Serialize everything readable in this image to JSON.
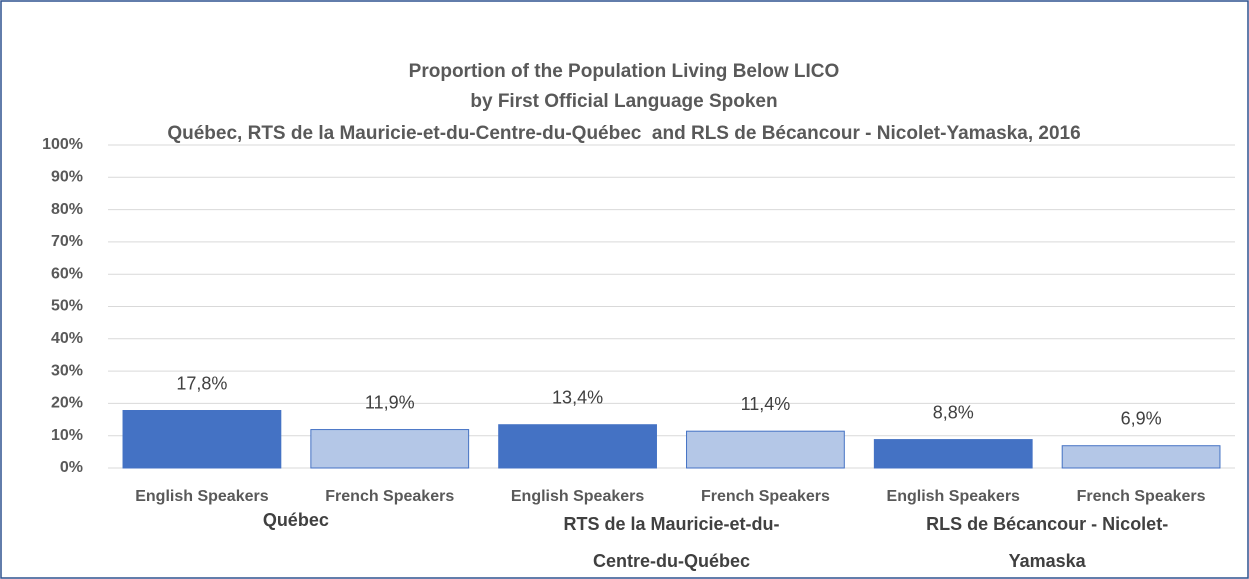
{
  "chart_data": {
    "type": "bar",
    "title": "Proportion of the Population Living Below LICO",
    "subtitle": [
      "by First Official Language Spoken",
      "Québec, RTS de la Mauricie-et-du-Centre-du-Québec  and RLS de Bécancour - Nicolet-Yamaska, 2016"
    ],
    "colors": [
      "#4472c4",
      "#b4c7e7"
    ],
    "groups": [
      {
        "name": [
          "Québec"
        ],
        "categories": [
          "English Speakers",
          "French Speakers"
        ],
        "values": [
          17.8,
          11.9
        ],
        "value_labels": [
          "17,8%",
          "11,9%"
        ]
      },
      {
        "name": [
          "RTS de la Mauricie-et-du-",
          "Centre-du-Québec"
        ],
        "categories": [
          "English Speakers",
          "French Speakers"
        ],
        "values": [
          13.4,
          11.4
        ],
        "value_labels": [
          "13,4%",
          "11,4%"
        ]
      },
      {
        "name": [
          "RLS de Bécancour - Nicolet-",
          "Yamaska"
        ],
        "categories": [
          "English Speakers",
          "French Speakers"
        ],
        "values": [
          8.8,
          6.9
        ],
        "value_labels": [
          "8,8%",
          "6,9%"
        ]
      }
    ],
    "ylim": [
      0,
      100
    ],
    "yticks": [
      {
        "value": 0,
        "label": "0%"
      },
      {
        "value": 10,
        "label": "10%"
      },
      {
        "value": 20,
        "label": "20%"
      },
      {
        "value": 30,
        "label": "30%"
      },
      {
        "value": 40,
        "label": "40%"
      },
      {
        "value": 50,
        "label": "50%"
      },
      {
        "value": 60,
        "label": "60%"
      },
      {
        "value": 70,
        "label": "70%"
      },
      {
        "value": 80,
        "label": "80%"
      },
      {
        "value": 90,
        "label": "90%"
      },
      {
        "value": 100,
        "label": "100%"
      }
    ],
    "grid": true
  }
}
